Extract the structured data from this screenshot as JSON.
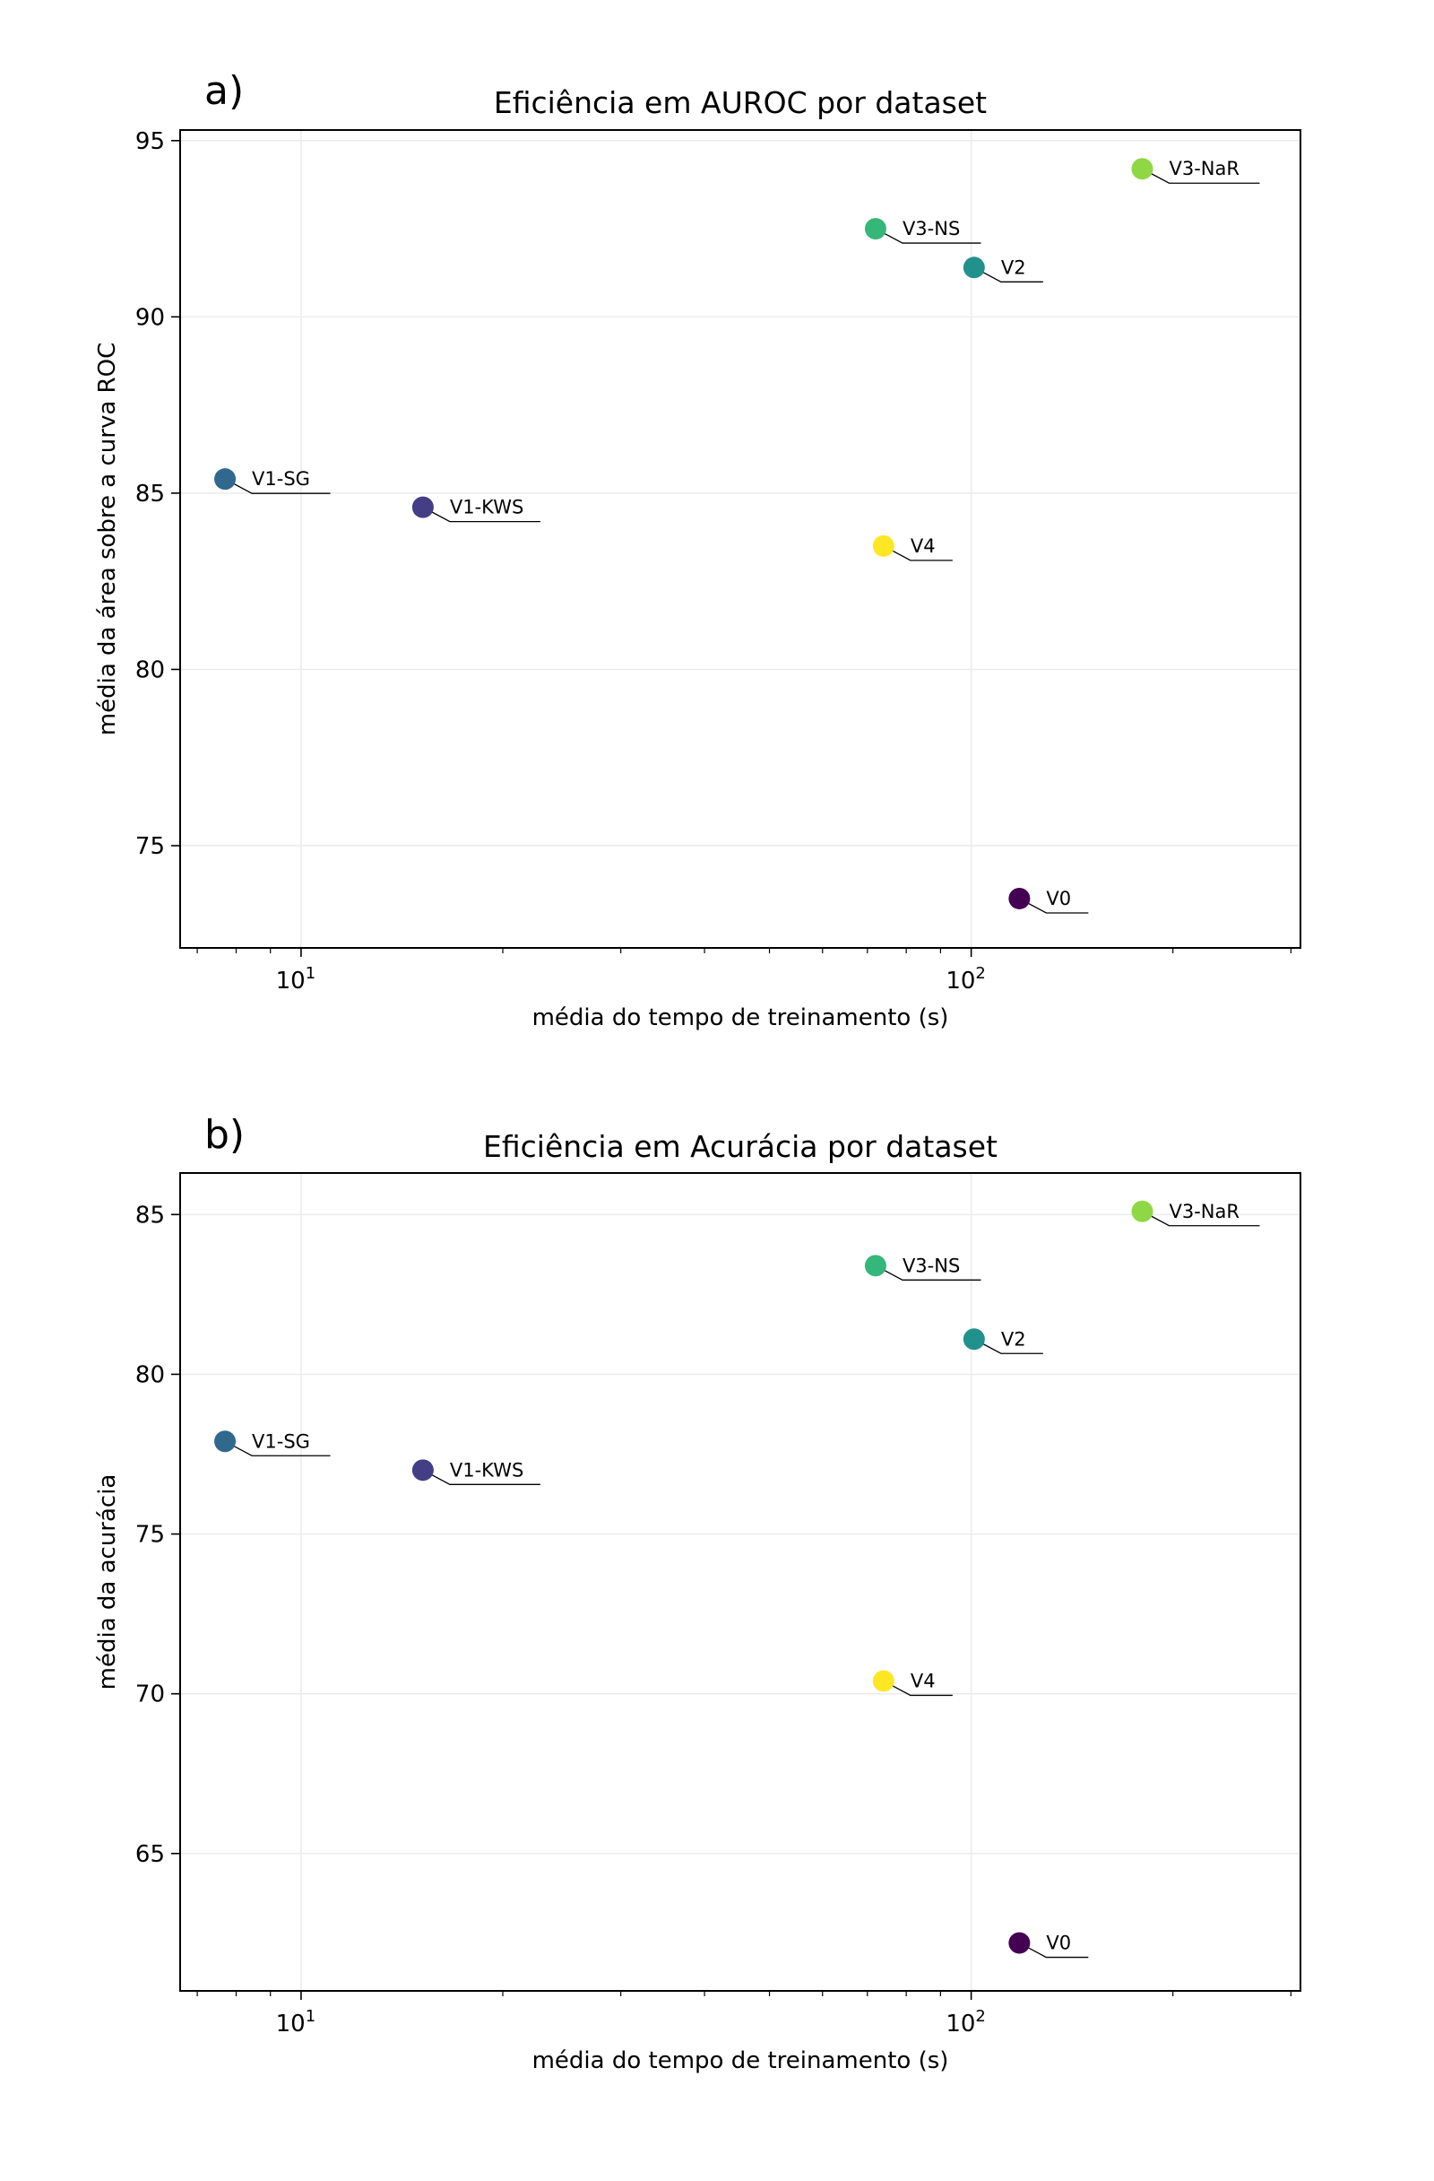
{
  "chart_data": [
    {
      "type": "scatter",
      "panel_label": "a)",
      "title": "Eficiência em AUROC por dataset",
      "xlabel": "média do tempo de treinamento (s)",
      "ylabel": "média da área sobre a curva ROC",
      "xscale": "log",
      "xlim": [
        6.6,
        310
      ],
      "ylim": [
        72.1,
        95.3
      ],
      "xticks": [
        {
          "value": 10,
          "base": "10",
          "exp": "1"
        },
        {
          "value": 100,
          "base": "10",
          "exp": "2"
        }
      ],
      "yticks": [
        75,
        80,
        85,
        90,
        95
      ],
      "grid": true,
      "points": [
        {
          "label": "V0",
          "x": 118,
          "y": 73.5,
          "color": "#440154"
        },
        {
          "label": "V1-KWS",
          "x": 15.2,
          "y": 84.6,
          "color": "#433e85"
        },
        {
          "label": "V1-SG",
          "x": 7.7,
          "y": 85.4,
          "color": "#31688e"
        },
        {
          "label": "V2",
          "x": 101,
          "y": 91.4,
          "color": "#21918c"
        },
        {
          "label": "V3-NS",
          "x": 72,
          "y": 92.5,
          "color": "#35b779"
        },
        {
          "label": "V3-NaR",
          "x": 180,
          "y": 94.2,
          "color": "#8fd744"
        },
        {
          "label": "V4",
          "x": 74,
          "y": 83.5,
          "color": "#fde725"
        }
      ]
    },
    {
      "type": "scatter",
      "panel_label": "b)",
      "title": "Eficiência em Acurácia por dataset",
      "xlabel": "média do tempo de treinamento (s)",
      "ylabel": "média da acurácia",
      "xscale": "log",
      "xlim": [
        6.6,
        310
      ],
      "ylim": [
        60.7,
        86.3
      ],
      "xticks": [
        {
          "value": 10,
          "base": "10",
          "exp": "1"
        },
        {
          "value": 100,
          "base": "10",
          "exp": "2"
        }
      ],
      "yticks": [
        65,
        70,
        75,
        80,
        85
      ],
      "grid": true,
      "points": [
        {
          "label": "V0",
          "x": 118,
          "y": 62.2,
          "color": "#440154"
        },
        {
          "label": "V1-KWS",
          "x": 15.2,
          "y": 77.0,
          "color": "#433e85"
        },
        {
          "label": "V1-SG",
          "x": 7.7,
          "y": 77.9,
          "color": "#31688e"
        },
        {
          "label": "V2",
          "x": 101,
          "y": 81.1,
          "color": "#21918c"
        },
        {
          "label": "V3-NS",
          "x": 72,
          "y": 83.4,
          "color": "#35b779"
        },
        {
          "label": "V3-NaR",
          "x": 180,
          "y": 85.1,
          "color": "#8fd744"
        },
        {
          "label": "V4",
          "x": 74,
          "y": 70.4,
          "color": "#fde725"
        }
      ]
    }
  ]
}
